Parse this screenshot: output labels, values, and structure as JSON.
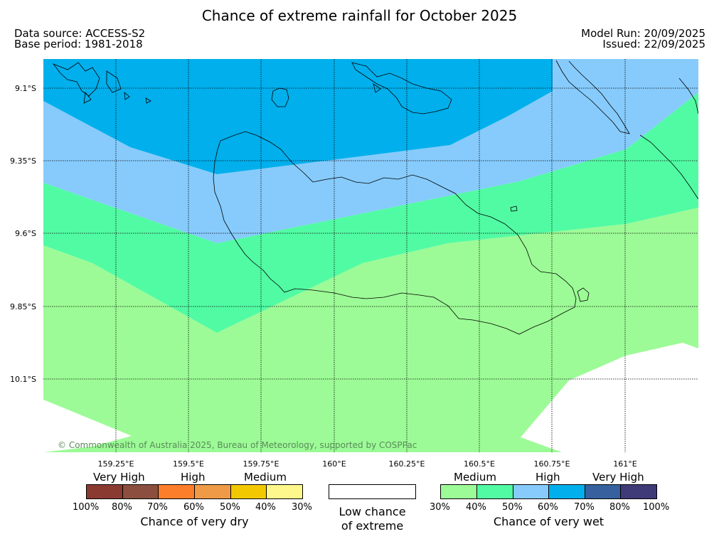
{
  "title": "Chance of extreme rainfall for October 2025",
  "data_source": "Data source: ACCESS-S2",
  "base_period": "Base period: 1981-2018",
  "model_run": "Model Run: 20/09/2025",
  "issued": "Issued: 22/09/2025",
  "credit": "© Commonwealth of Australia 2025, Bureau of Meteorology, supported by COSPPac",
  "lon_labels": [
    "159.25°E",
    "159.5°E",
    "159.75°E",
    "160°E",
    "160.25°E",
    "160.5°E",
    "160.75°E",
    "161°E"
  ],
  "lat_labels": [
    "9.1°S",
    "9.35°S",
    "9.6°S",
    "9.85°S",
    "10.1°S"
  ],
  "colors": {
    "wet_medium_30_40": "#9cfb96",
    "wet_medium_40_50": "#51fba3",
    "wet_high_50_60": "#86cbfc",
    "wet_high_60_70": "#00afec",
    "wet_vhigh_70_80": "#36619e",
    "wet_vhigh_80_100": "#3f3b78",
    "dry_vhigh_100_80": "#8b3a32",
    "dry_vhigh_80_70": "#8c4f3f",
    "dry_high_70_60": "#fc7e2a",
    "dry_high_60_50": "#ef9a47",
    "dry_med_50_40": "#f2c800",
    "dry_med_40_30": "#fef78b"
  },
  "legend": {
    "dry": {
      "headings": [
        "Very High",
        "High",
        "Medium"
      ],
      "ticks": [
        "100%",
        "80%",
        "70%",
        "60%",
        "50%",
        "40%",
        "30%"
      ],
      "caption": "Chance of very dry"
    },
    "neutral": {
      "caption_line1": "Low chance",
      "caption_line2": "of extreme"
    },
    "wet": {
      "headings": [
        "Medium",
        "High",
        "Very High"
      ],
      "ticks": [
        "30%",
        "40%",
        "50%",
        "60%",
        "70%",
        "80%",
        "100%"
      ],
      "caption": "Chance of very wet"
    }
  }
}
